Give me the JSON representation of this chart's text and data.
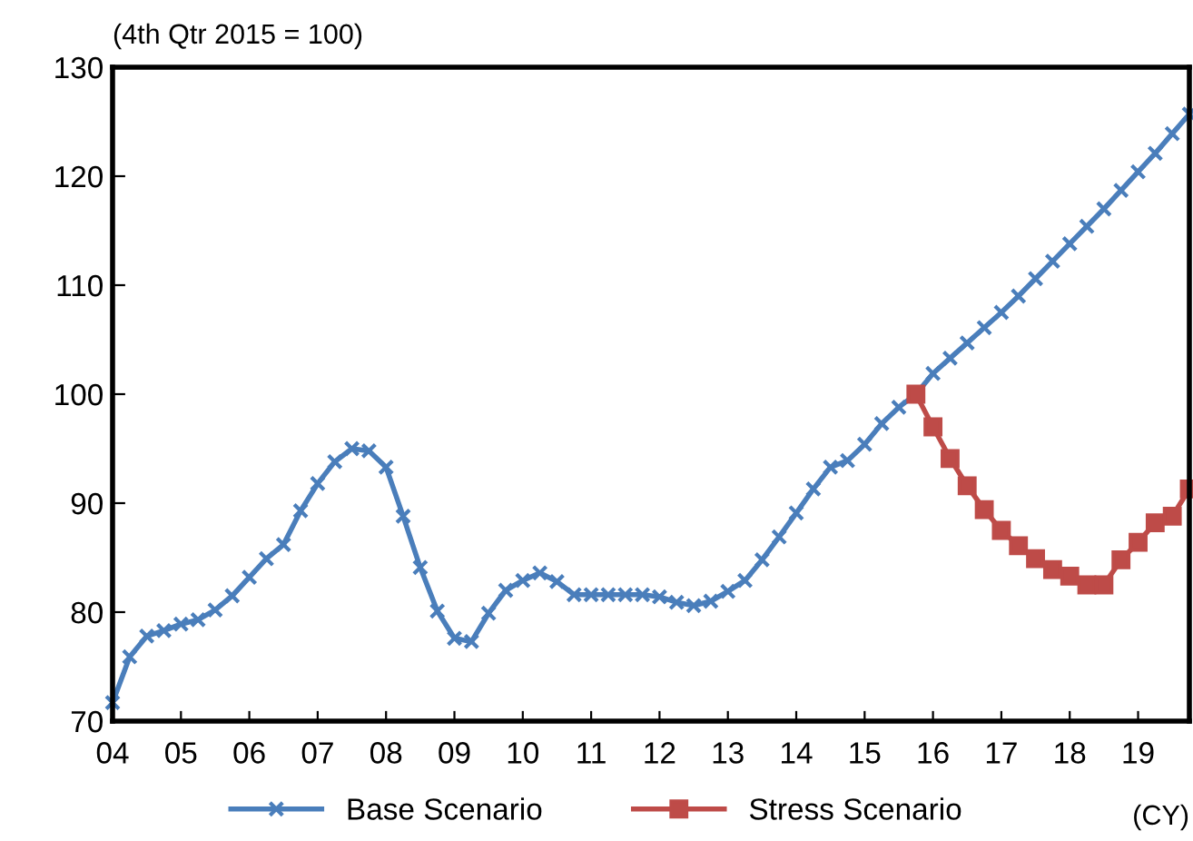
{
  "chart_data": {
    "type": "line",
    "annotations": [
      "(4th Qtr 2015 = 100)",
      "(CY)"
    ],
    "x": [
      2004.0,
      2004.25,
      2004.5,
      2004.75,
      2005.0,
      2005.25,
      2005.5,
      2005.75,
      2006.0,
      2006.25,
      2006.5,
      2006.75,
      2007.0,
      2007.25,
      2007.5,
      2007.75,
      2008.0,
      2008.25,
      2008.5,
      2008.75,
      2009.0,
      2009.25,
      2009.5,
      2009.75,
      2010.0,
      2010.25,
      2010.5,
      2010.75,
      2011.0,
      2011.25,
      2011.5,
      2011.75,
      2012.0,
      2012.25,
      2012.5,
      2012.75,
      2013.0,
      2013.25,
      2013.5,
      2013.75,
      2014.0,
      2014.25,
      2014.5,
      2014.75,
      2015.0,
      2015.25,
      2015.5,
      2015.75,
      2016.0,
      2016.25,
      2016.5,
      2016.75,
      2017.0,
      2017.25,
      2017.5,
      2017.75,
      2018.0,
      2018.25,
      2018.5,
      2018.75,
      2019.0,
      2019.25,
      2019.5,
      2019.75
    ],
    "series": [
      {
        "name": "Base Scenario",
        "color": "#4a7ebb",
        "marker": "cross",
        "values": [
          71.7,
          75.9,
          77.8,
          78.3,
          78.9,
          79.3,
          80.2,
          81.5,
          83.2,
          84.9,
          86.2,
          89.3,
          91.8,
          93.8,
          95.0,
          94.8,
          93.3,
          88.8,
          84.1,
          80.1,
          77.6,
          77.3,
          79.9,
          82.0,
          82.9,
          83.6,
          82.8,
          81.6,
          81.6,
          81.6,
          81.6,
          81.6,
          81.4,
          80.9,
          80.6,
          81.0,
          81.9,
          82.9,
          84.8,
          86.9,
          89.1,
          91.3,
          93.3,
          93.9,
          95.4,
          97.3,
          98.8,
          100,
          101.9,
          103.3,
          104.7,
          106.1,
          107.5,
          109.0,
          110.6,
          112.2,
          113.8,
          115.4,
          117.0,
          118.7,
          120.4,
          122.1,
          123.9,
          125.7
        ]
      },
      {
        "name": "Stress Scenario",
        "color": "#be4b48",
        "marker": "square",
        "values": [
          null,
          null,
          null,
          null,
          null,
          null,
          null,
          null,
          null,
          null,
          null,
          null,
          null,
          null,
          null,
          null,
          null,
          null,
          null,
          null,
          null,
          null,
          null,
          null,
          null,
          null,
          null,
          null,
          null,
          null,
          null,
          null,
          null,
          null,
          null,
          null,
          null,
          null,
          null,
          null,
          null,
          null,
          null,
          null,
          null,
          null,
          null,
          100,
          97.0,
          94.1,
          91.6,
          89.4,
          87.5,
          86.1,
          84.9,
          83.9,
          83.3,
          82.5,
          82.5,
          84.8,
          86.4,
          88.2,
          88.8,
          91.3
        ]
      }
    ],
    "xlim": [
      2004,
      2019.75
    ],
    "xticks": [
      {
        "value": 2004,
        "label": "04"
      },
      {
        "value": 2005,
        "label": "05"
      },
      {
        "value": 2006,
        "label": "06"
      },
      {
        "value": 2007,
        "label": "07"
      },
      {
        "value": 2008,
        "label": "08"
      },
      {
        "value": 2009,
        "label": "09"
      },
      {
        "value": 2010,
        "label": "10"
      },
      {
        "value": 2011,
        "label": "11"
      },
      {
        "value": 2012,
        "label": "12"
      },
      {
        "value": 2013,
        "label": "13"
      },
      {
        "value": 2014,
        "label": "14"
      },
      {
        "value": 2015,
        "label": "15"
      },
      {
        "value": 2016,
        "label": "16"
      },
      {
        "value": 2017,
        "label": "17"
      },
      {
        "value": 2018,
        "label": "18"
      },
      {
        "value": 2019,
        "label": "19"
      }
    ],
    "ylim": [
      70,
      130
    ],
    "yticks": [
      70,
      80,
      90,
      100,
      110,
      120,
      130
    ],
    "grid": false,
    "legend": "bottom",
    "line_style": "solid"
  }
}
